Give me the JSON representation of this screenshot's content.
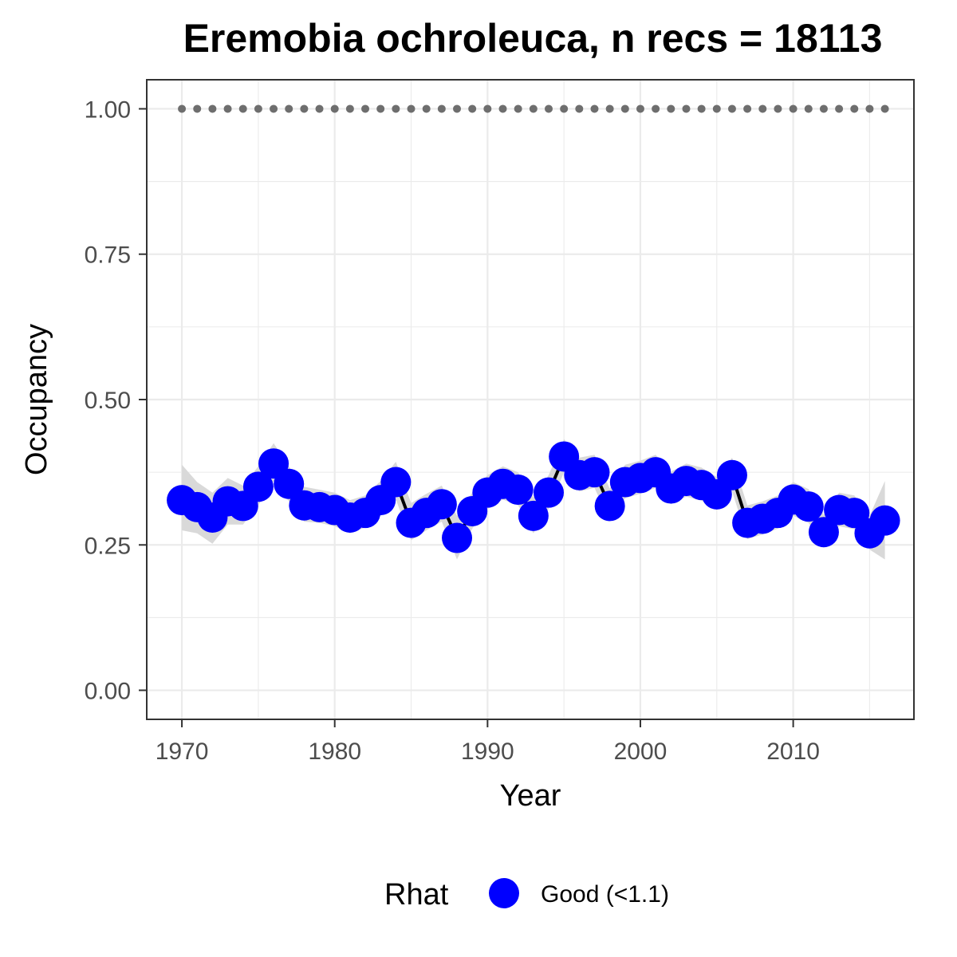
{
  "chart_data": {
    "type": "line",
    "title": "Eremobia ochroleuca, n recs = 18113",
    "xlabel": "Year",
    "ylabel": "Occupancy",
    "xlim": [
      1967.7,
      2017.9
    ],
    "ylim": [
      -0.05,
      1.05
    ],
    "x_ticks": [
      1970,
      1980,
      1990,
      2000,
      2010
    ],
    "x_tick_labels": [
      "1970",
      "1980",
      "1990",
      "2000",
      "2010"
    ],
    "y_ticks": [
      0,
      0.25,
      0.5,
      0.75,
      1.0
    ],
    "y_tick_labels": [
      "0.00",
      "0.25",
      "0.50",
      "0.75",
      "1.00"
    ],
    "grid": true,
    "colors": {
      "points": "#0000ff",
      "line": "#000000",
      "ribbon": "#d9d9d9",
      "reference_points": "#6e6e6e",
      "grid": "#ebebeb",
      "panel_border": "#333333"
    },
    "series": [
      {
        "x": [
          1970,
          1971,
          1972,
          1973,
          1974,
          1975,
          1976,
          1977,
          1978,
          1979,
          1980,
          1981,
          1982,
          1983,
          1984,
          1985,
          1986,
          1987,
          1988,
          1989,
          1990,
          1991,
          1992,
          1993,
          1994,
          1995,
          1996,
          1997,
          1998,
          1999,
          2000,
          2001,
          2002,
          2003,
          2004,
          2005,
          2006,
          2007,
          2008,
          2009,
          2010,
          2011,
          2012,
          2013,
          2014,
          2015,
          2016
        ],
        "values": [
          0.327,
          0.315,
          0.297,
          0.325,
          0.317,
          0.35,
          0.39,
          0.355,
          0.318,
          0.315,
          0.31,
          0.297,
          0.305,
          0.327,
          0.358,
          0.288,
          0.305,
          0.32,
          0.262,
          0.308,
          0.34,
          0.355,
          0.345,
          0.3,
          0.34,
          0.402,
          0.37,
          0.375,
          0.317,
          0.358,
          0.365,
          0.375,
          0.347,
          0.36,
          0.353,
          0.337,
          0.37,
          0.288,
          0.295,
          0.305,
          0.328,
          0.316,
          0.272,
          0.31,
          0.305,
          0.27,
          0.292
        ],
        "lower": [
          0.275,
          0.27,
          0.252,
          0.285,
          0.285,
          0.318,
          0.36,
          0.325,
          0.29,
          0.288,
          0.282,
          0.27,
          0.28,
          0.3,
          0.328,
          0.258,
          0.275,
          0.29,
          0.225,
          0.278,
          0.312,
          0.328,
          0.318,
          0.27,
          0.312,
          0.375,
          0.342,
          0.348,
          0.29,
          0.33,
          0.338,
          0.348,
          0.32,
          0.333,
          0.326,
          0.31,
          0.342,
          0.26,
          0.268,
          0.278,
          0.3,
          0.288,
          0.245,
          0.282,
          0.277,
          0.242,
          0.225
        ],
        "upper": [
          0.388,
          0.358,
          0.34,
          0.365,
          0.352,
          0.385,
          0.425,
          0.385,
          0.35,
          0.345,
          0.34,
          0.327,
          0.335,
          0.36,
          0.393,
          0.322,
          0.338,
          0.352,
          0.3,
          0.34,
          0.37,
          0.385,
          0.375,
          0.332,
          0.37,
          0.432,
          0.4,
          0.405,
          0.347,
          0.388,
          0.395,
          0.405,
          0.376,
          0.39,
          0.383,
          0.367,
          0.4,
          0.318,
          0.325,
          0.335,
          0.358,
          0.346,
          0.302,
          0.34,
          0.335,
          0.3,
          0.36
        ]
      }
    ],
    "reference_points": {
      "x": [
        1970,
        1971,
        1972,
        1973,
        1974,
        1975,
        1976,
        1977,
        1978,
        1979,
        1980,
        1981,
        1982,
        1983,
        1984,
        1985,
        1986,
        1987,
        1988,
        1989,
        1990,
        1991,
        1992,
        1993,
        1994,
        1995,
        1996,
        1997,
        1998,
        1999,
        2000,
        2001,
        2002,
        2003,
        2004,
        2005,
        2006,
        2007,
        2008,
        2009,
        2010,
        2011,
        2012,
        2013,
        2014,
        2015,
        2016
      ],
      "value": 1.0
    },
    "legend": {
      "title": "Rhat",
      "entries": [
        "Good (<1.1)"
      ],
      "placement": "bottom"
    }
  }
}
